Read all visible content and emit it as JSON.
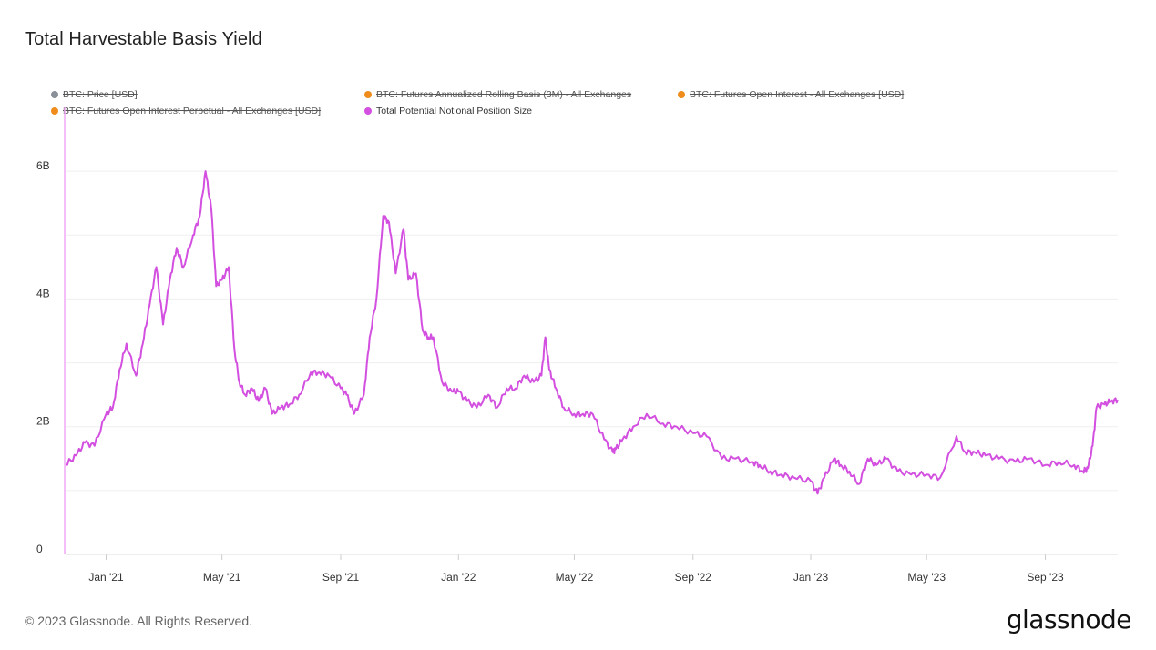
{
  "chart_data": {
    "type": "line",
    "title": "Total Harvestable Basis Yield",
    "xlabel": "",
    "ylabel": "",
    "ylim": [
      0,
      7000000000
    ],
    "y_ticks": [
      {
        "value": 0,
        "label": "0"
      },
      {
        "value": 2000000000,
        "label": "2B"
      },
      {
        "value": 4000000000,
        "label": "4B"
      },
      {
        "value": 6000000000,
        "label": "6B"
      }
    ],
    "x_range": [
      "2020-11-20",
      "2023-11-15"
    ],
    "x_ticks": [
      {
        "date": "2021-01-01",
        "label": "Jan '21"
      },
      {
        "date": "2021-05-01",
        "label": "May '21"
      },
      {
        "date": "2021-09-01",
        "label": "Sep '21"
      },
      {
        "date": "2022-01-01",
        "label": "Jan '22"
      },
      {
        "date": "2022-05-01",
        "label": "May '22"
      },
      {
        "date": "2022-09-01",
        "label": "Sep '22"
      },
      {
        "date": "2023-01-01",
        "label": "Jan '23"
      },
      {
        "date": "2023-05-01",
        "label": "May '23"
      },
      {
        "date": "2023-09-01",
        "label": "Sep '23"
      }
    ],
    "legend": [
      {
        "name": "BTC: Price [USD]",
        "color": "#8a8f98",
        "visible": false
      },
      {
        "name": "BTC: Futures Annualized Rolling Basis (3M) - All Exchanges",
        "color": "#f08c1c",
        "visible": false
      },
      {
        "name": "BTC: Futures Open Interest - All Exchanges [USD]",
        "color": "#f08c1c",
        "visible": false
      },
      {
        "name": "BTC: Futures Open Interest Perpetual - All Exchanges [USD]",
        "color": "#f08c1c",
        "visible": false
      },
      {
        "name": "Total Potential Notional Position Size",
        "color": "#d34fe0",
        "visible": true
      }
    ],
    "series": [
      {
        "name": "Total Potential Notional Position Size",
        "color": "#d34fe0",
        "x": [
          "2020-11-20",
          "2020-12-01",
          "2020-12-10",
          "2020-12-20",
          "2021-01-01",
          "2021-01-08",
          "2021-01-15",
          "2021-01-22",
          "2021-02-01",
          "2021-02-08",
          "2021-02-15",
          "2021-02-22",
          "2021-03-01",
          "2021-03-08",
          "2021-03-15",
          "2021-03-22",
          "2021-04-01",
          "2021-04-08",
          "2021-04-14",
          "2021-04-20",
          "2021-04-25",
          "2021-05-01",
          "2021-05-08",
          "2021-05-14",
          "2021-05-19",
          "2021-05-25",
          "2021-06-01",
          "2021-06-08",
          "2021-06-15",
          "2021-06-22",
          "2021-07-01",
          "2021-07-10",
          "2021-07-20",
          "2021-08-01",
          "2021-08-10",
          "2021-08-20",
          "2021-09-01",
          "2021-09-07",
          "2021-09-15",
          "2021-09-25",
          "2021-10-01",
          "2021-10-08",
          "2021-10-15",
          "2021-10-21",
          "2021-10-28",
          "2021-11-05",
          "2021-11-10",
          "2021-11-18",
          "2021-11-25",
          "2021-12-01",
          "2021-12-06",
          "2021-12-15",
          "2021-12-25",
          "2022-01-01",
          "2022-01-10",
          "2022-01-20",
          "2022-02-01",
          "2022-02-10",
          "2022-02-20",
          "2022-03-01",
          "2022-03-10",
          "2022-03-20",
          "2022-03-28",
          "2022-04-01",
          "2022-04-05",
          "2022-04-12",
          "2022-04-20",
          "2022-05-01",
          "2022-05-10",
          "2022-05-20",
          "2022-06-01",
          "2022-06-10",
          "2022-06-13",
          "2022-06-20",
          "2022-07-01",
          "2022-07-15",
          "2022-08-01",
          "2022-08-15",
          "2022-09-01",
          "2022-09-15",
          "2022-10-01",
          "2022-10-15",
          "2022-11-01",
          "2022-11-09",
          "2022-11-20",
          "2022-12-01",
          "2022-12-15",
          "2023-01-01",
          "2023-01-08",
          "2023-01-15",
          "2023-01-25",
          "2023-02-01",
          "2023-02-10",
          "2023-02-20",
          "2023-03-01",
          "2023-03-10",
          "2023-03-20",
          "2023-04-01",
          "2023-04-15",
          "2023-05-01",
          "2023-05-15",
          "2023-06-01",
          "2023-06-10",
          "2023-06-20",
          "2023-07-01",
          "2023-07-15",
          "2023-08-01",
          "2023-08-15",
          "2023-09-01",
          "2023-09-15",
          "2023-10-01",
          "2023-10-10",
          "2023-10-15",
          "2023-10-20",
          "2023-10-24",
          "2023-11-01",
          "2023-11-08",
          "2023-11-15"
        ],
        "values": [
          1400000000.0,
          1550000000.0,
          1750000000.0,
          1700000000.0,
          2200000000.0,
          2300000000.0,
          2900000000.0,
          3300000000.0,
          2800000000.0,
          3300000000.0,
          3900000000.0,
          4500000000.0,
          3600000000.0,
          4300000000.0,
          4800000000.0,
          4500000000.0,
          5000000000.0,
          5300000000.0,
          6000000000.0,
          5400000000.0,
          4200000000.0,
          4300000000.0,
          4500000000.0,
          3200000000.0,
          2700000000.0,
          2500000000.0,
          2600000000.0,
          2400000000.0,
          2600000000.0,
          2200000000.0,
          2300000000.0,
          2350000000.0,
          2500000000.0,
          2850000000.0,
          2850000000.0,
          2800000000.0,
          2600000000.0,
          2500000000.0,
          2200000000.0,
          2500000000.0,
          3400000000.0,
          4000000000.0,
          5300000000.0,
          5200000000.0,
          4400000000.0,
          5100000000.0,
          4300000000.0,
          4400000000.0,
          3500000000.0,
          3400000000.0,
          3400000000.0,
          2700000000.0,
          2550000000.0,
          2550000000.0,
          2400000000.0,
          2300000000.0,
          2500000000.0,
          2300000000.0,
          2600000000.0,
          2600000000.0,
          2800000000.0,
          2700000000.0,
          2800000000.0,
          3400000000.0,
          2900000000.0,
          2600000000.0,
          2300000000.0,
          2200000000.0,
          2200000000.0,
          2200000000.0,
          1800000000.0,
          1600000000.0,
          1650000000.0,
          1800000000.0,
          2000000000.0,
          2200000000.0,
          2050000000.0,
          2000000000.0,
          1900000000.0,
          1850000000.0,
          1500000000.0,
          1500000000.0,
          1450000000.0,
          1400000000.0,
          1300000000.0,
          1250000000.0,
          1200000000.0,
          1150000000.0,
          950000000.0,
          1200000000.0,
          1500000000.0,
          1400000000.0,
          1300000000.0,
          1100000000.0,
          1500000000.0,
          1400000000.0,
          1500000000.0,
          1300000000.0,
          1250000000.0,
          1250000000.0,
          1200000000.0,
          1850000000.0,
          1600000000.0,
          1600000000.0,
          1550000000.0,
          1500000000.0,
          1450000000.0,
          1500000000.0,
          1400000000.0,
          1450000000.0,
          1400000000.0,
          1300000000.0,
          1350000000.0,
          1700000000.0,
          2300000000.0,
          2350000000.0,
          2400000000.0,
          2420000000.0
        ]
      }
    ]
  },
  "footer": {
    "copyright": "© 2023 Glassnode. All Rights Reserved.",
    "brand": "glassnode"
  }
}
